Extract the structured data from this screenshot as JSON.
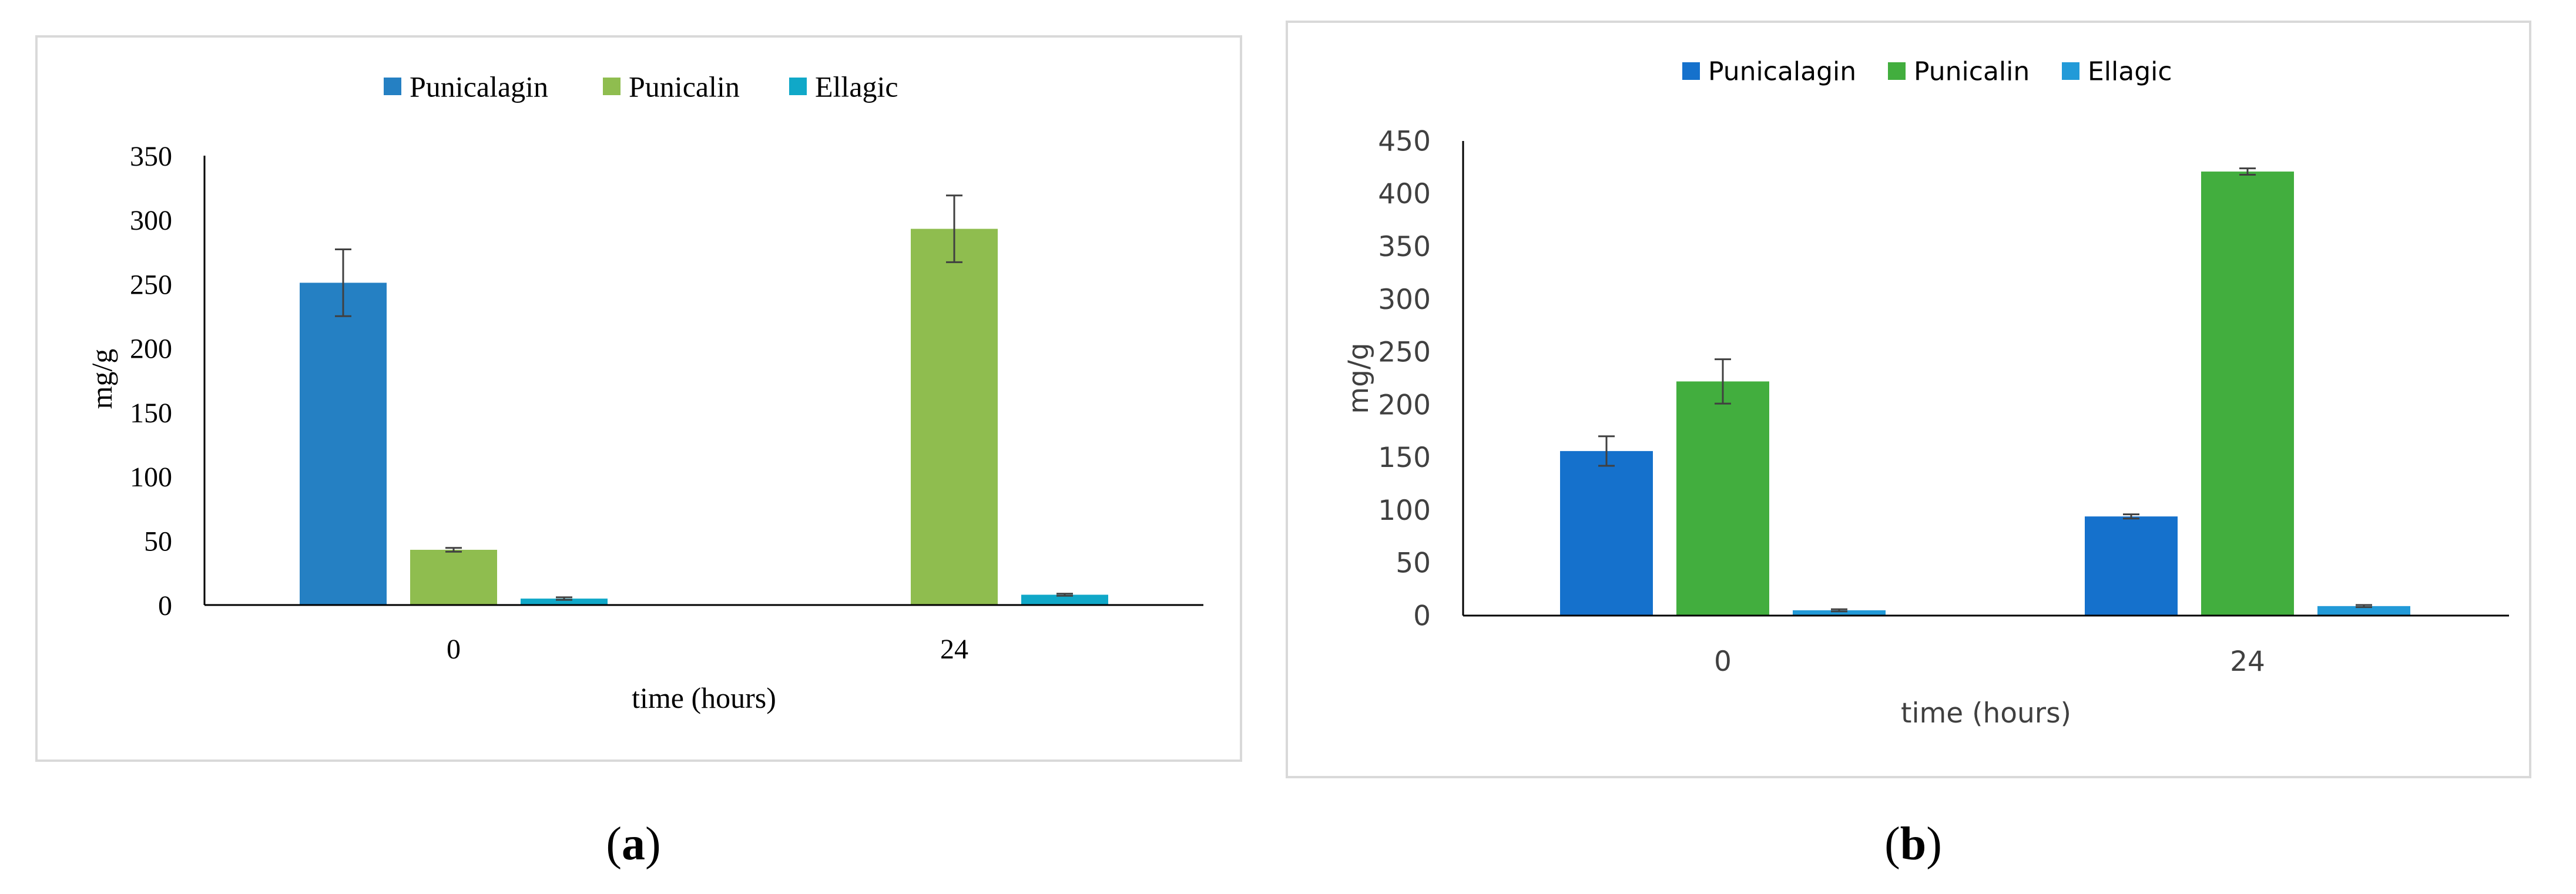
{
  "chart_data": [
    {
      "type": "bar",
      "panel_label": "a",
      "xlabel": "time (hours)",
      "ylabel": "mg/g",
      "categories": [
        "0",
        "24"
      ],
      "ylim": [
        0,
        350
      ],
      "yticks": [
        0,
        50,
        100,
        150,
        200,
        250,
        300,
        350
      ],
      "legend_position": "top",
      "series": [
        {
          "name": "Punicalagin",
          "color": "#2580c3",
          "values": [
            251,
            0
          ],
          "errors": [
            26,
            0
          ]
        },
        {
          "name": "Punicalin",
          "color": "#8fbd4f",
          "values": [
            43,
            293
          ],
          "errors": [
            1.5,
            26
          ]
        },
        {
          "name": "Ellagic",
          "color": "#10a8c8",
          "values": [
            5,
            8
          ],
          "errors": [
            1,
            0.8
          ]
        }
      ]
    },
    {
      "type": "bar",
      "panel_label": "b",
      "xlabel": "time (hours)",
      "ylabel": "mg/g",
      "categories": [
        "0",
        "24"
      ],
      "ylim": [
        0,
        450
      ],
      "yticks": [
        0,
        50,
        100,
        150,
        200,
        250,
        300,
        350,
        400,
        450
      ],
      "legend_position": "top",
      "series": [
        {
          "name": "Punicalagin",
          "color": "#1571cc",
          "values": [
            156,
            94
          ],
          "errors": [
            14,
            2
          ]
        },
        {
          "name": "Punicalin",
          "color": "#42ae3e",
          "values": [
            222,
            421
          ],
          "errors": [
            21,
            3
          ]
        },
        {
          "name": "Ellagic",
          "color": "#229ad8",
          "values": [
            5,
            9
          ],
          "errors": [
            1,
            1
          ]
        }
      ]
    }
  ]
}
